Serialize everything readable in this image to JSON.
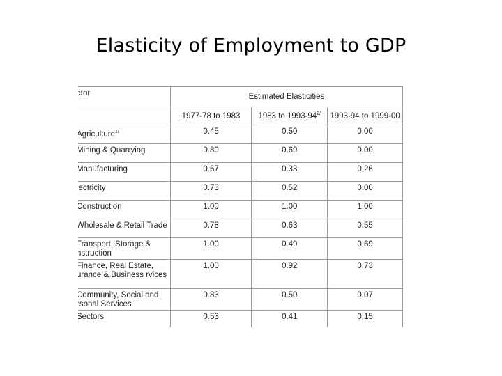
{
  "title": "Elasticity of Employment to GDP",
  "table": {
    "sector_header": "ctor",
    "group_header": "Estimated Elasticities",
    "periods": [
      {
        "label": "1977-78 to 1983",
        "sup": ""
      },
      {
        "label": "1983 to 1993-94",
        "sup": "2/"
      },
      {
        "label": "1993-94 to 1999-00",
        "sup": ""
      }
    ],
    "rows": [
      {
        "sector": "Agriculture",
        "sup": "1/",
        "values": [
          "0.45",
          "0.50",
          "0.00"
        ]
      },
      {
        "sector": "Mining & Quarrying",
        "sup": "",
        "values": [
          "0.80",
          "0.69",
          "0.00"
        ]
      },
      {
        "sector": "Manufacturing",
        "sup": "",
        "values": [
          "0.67",
          "0.33",
          "0.26"
        ]
      },
      {
        "sector": "lectricity",
        "sup": "",
        "values": [
          "0.73",
          "0.52",
          "0.00"
        ]
      },
      {
        "sector": "Construction",
        "sup": "",
        "values": [
          "1.00",
          "1.00",
          "1.00"
        ]
      },
      {
        "sector": "Wholesale & Retail Trade",
        "sup": "",
        "values": [
          "0.78",
          "0.63",
          "0.55"
        ]
      },
      {
        "sector": "Transport, Storage & nstruction",
        "sup": "",
        "values": [
          "1.00",
          "0.49",
          "0.69"
        ]
      },
      {
        "sector": "Finance, Real Estate, urance    & Business rvices",
        "sup": "",
        "values": [
          "1.00",
          "0.92",
          "0.73"
        ]
      },
      {
        "sector": "Community, Social and rsonal Services",
        "sup": "",
        "values": [
          "0.83",
          "0.50",
          "0.07"
        ]
      },
      {
        "sector": "Sectors",
        "sup": "",
        "values": [
          "0.53",
          "0.41",
          "0.15"
        ]
      }
    ]
  }
}
